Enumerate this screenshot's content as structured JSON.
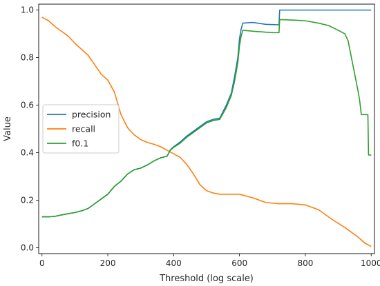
{
  "chart_data": {
    "type": "line",
    "xlabel": "Threshold (log scale)",
    "ylabel": "Value",
    "xlim": [
      -10,
      1010
    ],
    "ylim": [
      -0.025,
      1.025
    ],
    "xticks": [
      0,
      200,
      400,
      600,
      800,
      1000
    ],
    "yticks": [
      0.0,
      0.2,
      0.4,
      0.6,
      0.8,
      1.0
    ],
    "xtick_labels": [
      "0",
      "200",
      "400",
      "600",
      "800",
      "1000"
    ],
    "ytick_labels": [
      "0.0",
      "0.2",
      "0.4",
      "0.6",
      "0.8",
      "1.0"
    ],
    "grid": false,
    "legend_position": "center-left",
    "series": [
      {
        "name": "precision",
        "color": "#1f77b4",
        "points": [
          [
            0,
            0.13
          ],
          [
            20,
            0.13
          ],
          [
            40,
            0.132
          ],
          [
            60,
            0.138
          ],
          [
            80,
            0.143
          ],
          [
            100,
            0.148
          ],
          [
            120,
            0.155
          ],
          [
            140,
            0.165
          ],
          [
            160,
            0.185
          ],
          [
            180,
            0.205
          ],
          [
            200,
            0.225
          ],
          [
            220,
            0.258
          ],
          [
            240,
            0.28
          ],
          [
            260,
            0.31
          ],
          [
            280,
            0.328
          ],
          [
            300,
            0.335
          ],
          [
            320,
            0.348
          ],
          [
            340,
            0.365
          ],
          [
            360,
            0.378
          ],
          [
            380,
            0.385
          ],
          [
            390,
            0.412
          ],
          [
            400,
            0.425
          ],
          [
            420,
            0.445
          ],
          [
            440,
            0.47
          ],
          [
            460,
            0.49
          ],
          [
            480,
            0.51
          ],
          [
            500,
            0.53
          ],
          [
            520,
            0.54
          ],
          [
            540,
            0.545
          ],
          [
            560,
            0.6
          ],
          [
            575,
            0.65
          ],
          [
            585,
            0.72
          ],
          [
            595,
            0.8
          ],
          [
            600,
            0.88
          ],
          [
            605,
            0.92
          ],
          [
            610,
            0.945
          ],
          [
            640,
            0.948
          ],
          [
            680,
            0.94
          ],
          [
            720,
            0.938
          ],
          [
            722,
            1.0
          ],
          [
            1000,
            1.0
          ]
        ]
      },
      {
        "name": "recall",
        "color": "#ff7f0e",
        "points": [
          [
            0,
            0.97
          ],
          [
            20,
            0.955
          ],
          [
            40,
            0.93
          ],
          [
            60,
            0.91
          ],
          [
            80,
            0.89
          ],
          [
            100,
            0.86
          ],
          [
            120,
            0.835
          ],
          [
            140,
            0.81
          ],
          [
            160,
            0.77
          ],
          [
            180,
            0.73
          ],
          [
            200,
            0.705
          ],
          [
            220,
            0.655
          ],
          [
            240,
            0.56
          ],
          [
            260,
            0.505
          ],
          [
            280,
            0.475
          ],
          [
            300,
            0.455
          ],
          [
            320,
            0.443
          ],
          [
            340,
            0.435
          ],
          [
            360,
            0.425
          ],
          [
            380,
            0.41
          ],
          [
            400,
            0.395
          ],
          [
            420,
            0.38
          ],
          [
            440,
            0.35
          ],
          [
            460,
            0.31
          ],
          [
            480,
            0.265
          ],
          [
            500,
            0.24
          ],
          [
            520,
            0.23
          ],
          [
            540,
            0.225
          ],
          [
            560,
            0.225
          ],
          [
            600,
            0.225
          ],
          [
            640,
            0.21
          ],
          [
            680,
            0.19
          ],
          [
            720,
            0.185
          ],
          [
            760,
            0.185
          ],
          [
            800,
            0.18
          ],
          [
            840,
            0.16
          ],
          [
            880,
            0.12
          ],
          [
            920,
            0.085
          ],
          [
            960,
            0.045
          ],
          [
            980,
            0.02
          ],
          [
            1000,
            0.005
          ]
        ]
      },
      {
        "name": "f0.1",
        "color": "#2ca02c",
        "points": [
          [
            0,
            0.13
          ],
          [
            20,
            0.13
          ],
          [
            40,
            0.132
          ],
          [
            60,
            0.138
          ],
          [
            80,
            0.143
          ],
          [
            100,
            0.148
          ],
          [
            120,
            0.155
          ],
          [
            140,
            0.165
          ],
          [
            160,
            0.185
          ],
          [
            180,
            0.205
          ],
          [
            200,
            0.225
          ],
          [
            220,
            0.258
          ],
          [
            240,
            0.28
          ],
          [
            260,
            0.31
          ],
          [
            280,
            0.328
          ],
          [
            300,
            0.335
          ],
          [
            320,
            0.348
          ],
          [
            340,
            0.365
          ],
          [
            360,
            0.378
          ],
          [
            380,
            0.385
          ],
          [
            390,
            0.41
          ],
          [
            400,
            0.422
          ],
          [
            420,
            0.44
          ],
          [
            440,
            0.465
          ],
          [
            460,
            0.485
          ],
          [
            480,
            0.505
          ],
          [
            500,
            0.525
          ],
          [
            520,
            0.535
          ],
          [
            540,
            0.54
          ],
          [
            560,
            0.59
          ],
          [
            575,
            0.64
          ],
          [
            585,
            0.7
          ],
          [
            595,
            0.78
          ],
          [
            600,
            0.85
          ],
          [
            605,
            0.89
          ],
          [
            610,
            0.915
          ],
          [
            650,
            0.91
          ],
          [
            700,
            0.905
          ],
          [
            720,
            0.905
          ],
          [
            722,
            0.96
          ],
          [
            760,
            0.958
          ],
          [
            800,
            0.955
          ],
          [
            840,
            0.945
          ],
          [
            870,
            0.935
          ],
          [
            900,
            0.915
          ],
          [
            920,
            0.9
          ],
          [
            930,
            0.87
          ],
          [
            940,
            0.8
          ],
          [
            950,
            0.73
          ],
          [
            960,
            0.66
          ],
          [
            965,
            0.62
          ],
          [
            970,
            0.56
          ],
          [
            990,
            0.56
          ],
          [
            992,
            0.39
          ],
          [
            1000,
            0.39
          ]
        ]
      }
    ]
  }
}
